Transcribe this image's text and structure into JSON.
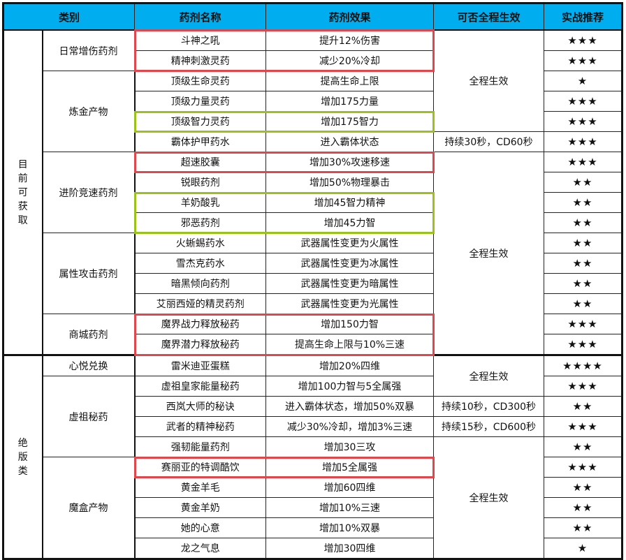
{
  "headers": [
    "类别",
    "药剂名称",
    "药剂效果",
    "可否全程生效",
    "实战推荐"
  ],
  "colors": {
    "header_bg": "#00aeef",
    "highlight_red": "#e0474c",
    "highlight_green": "#9bc21b"
  },
  "groups": [
    {
      "label": "目前可获取",
      "span": 16
    },
    {
      "label": "绝版类",
      "span": 10
    }
  ],
  "categories": [
    {
      "label": "日常增伤药剂",
      "span": 2
    },
    {
      "label": "炼金产物",
      "span": 4
    },
    {
      "label": "进阶竞速药剂",
      "span": 4
    },
    {
      "label": "属性攻击药剂",
      "span": 4
    },
    {
      "label": "商城药剂",
      "span": 2
    },
    {
      "label": "心悦兑换",
      "span": 1
    },
    {
      "label": "虚祖秘药",
      "span": 4
    },
    {
      "label": "魔盒产物",
      "span": 5
    }
  ],
  "durations": [
    {
      "text": "全程生效",
      "span": 5
    },
    {
      "text": "持续30秒，CD60秒",
      "span": 1
    },
    {
      "text": "全程生效",
      "span": 10
    },
    {
      "text": "全程生效",
      "span": 2
    },
    {
      "text": "持续10秒，CD300秒",
      "span": 1
    },
    {
      "text": "持续15秒，CD600秒",
      "span": 1
    },
    {
      "text": "全程生效",
      "span": 6
    }
  ],
  "rows": [
    {
      "name": "斗神之吼",
      "effect": "提升12%伤害",
      "rating": "★★★"
    },
    {
      "name": "精神刺激灵药",
      "effect": "减少20%冷却",
      "rating": "★★★"
    },
    {
      "name": "顶级生命灵药",
      "effect": "提高生命上限",
      "rating": "★"
    },
    {
      "name": "顶级力量灵药",
      "effect": "增加175力量",
      "rating": "★★★"
    },
    {
      "name": "顶级智力灵药",
      "effect": "增加175智力",
      "rating": "★★★"
    },
    {
      "name": "霸体护甲药水",
      "effect": "进入霸体状态",
      "rating": "★★★"
    },
    {
      "name": "超速胶囊",
      "effect": "增加30%攻速移速",
      "rating": "★★★"
    },
    {
      "name": "锐眼药剂",
      "effect": "增加50%物理暴击",
      "rating": "★★"
    },
    {
      "name": "羊奶酸乳",
      "effect": "增加45智力精神",
      "rating": "★★"
    },
    {
      "name": "邪恶药剂",
      "effect": "增加45力智",
      "rating": "★★"
    },
    {
      "name": "火蜥蜴药水",
      "effect": "武器属性变更为火属性",
      "rating": "★★"
    },
    {
      "name": "雪杰克药水",
      "effect": "武器属性变更为冰属性",
      "rating": "★★"
    },
    {
      "name": "暗黑倾向药剂",
      "effect": "武器属性变更为暗属性",
      "rating": "★★"
    },
    {
      "name": "艾丽西娅的精灵药剂",
      "effect": "武器属性变更为光属性",
      "rating": "★★"
    },
    {
      "name": "魔界战力释放秘药",
      "effect": "增加150力智",
      "rating": "★★★"
    },
    {
      "name": "魔界潜力释放秘药",
      "effect": "提高生命上限与10%三速",
      "rating": "★★★"
    },
    {
      "name": "雷米迪亚蛋糕",
      "effect": "增加20%四维",
      "rating": "★★★★"
    },
    {
      "name": "虚祖皇家能量秘药",
      "effect": "增加100力智与5全属强",
      "rating": "★★★"
    },
    {
      "name": "西岚大师的秘诀",
      "effect": "进入霸体状态，增加50%双暴",
      "rating": "★★"
    },
    {
      "name": "武者的精神秘药",
      "effect": "减少30%冷却，增加3%三速",
      "rating": "★★★"
    },
    {
      "name": "强韧能量药剂",
      "effect": "增加30三攻",
      "rating": "★★"
    },
    {
      "name": "赛丽亚的特调酷饮",
      "effect": "增加5全属强",
      "rating": "★★★"
    },
    {
      "name": "黄金羊毛",
      "effect": "增加60四维",
      "rating": "★★"
    },
    {
      "name": "黄金羊奶",
      "effect": "增加10%三速",
      "rating": "★★"
    },
    {
      "name": "她的心意",
      "effect": "增加10%双暴",
      "rating": "★★"
    },
    {
      "name": "龙之气息",
      "effect": "增加30四维",
      "rating": "★"
    }
  ],
  "highlights": [
    {
      "first_row": 0,
      "last_row": 1,
      "color": "red"
    },
    {
      "first_row": 4,
      "last_row": 4,
      "color": "green"
    },
    {
      "first_row": 6,
      "last_row": 6,
      "color": "red"
    },
    {
      "first_row": 8,
      "last_row": 9,
      "color": "green"
    },
    {
      "first_row": 14,
      "last_row": 15,
      "color": "red"
    },
    {
      "first_row": 21,
      "last_row": 21,
      "color": "red"
    }
  ]
}
